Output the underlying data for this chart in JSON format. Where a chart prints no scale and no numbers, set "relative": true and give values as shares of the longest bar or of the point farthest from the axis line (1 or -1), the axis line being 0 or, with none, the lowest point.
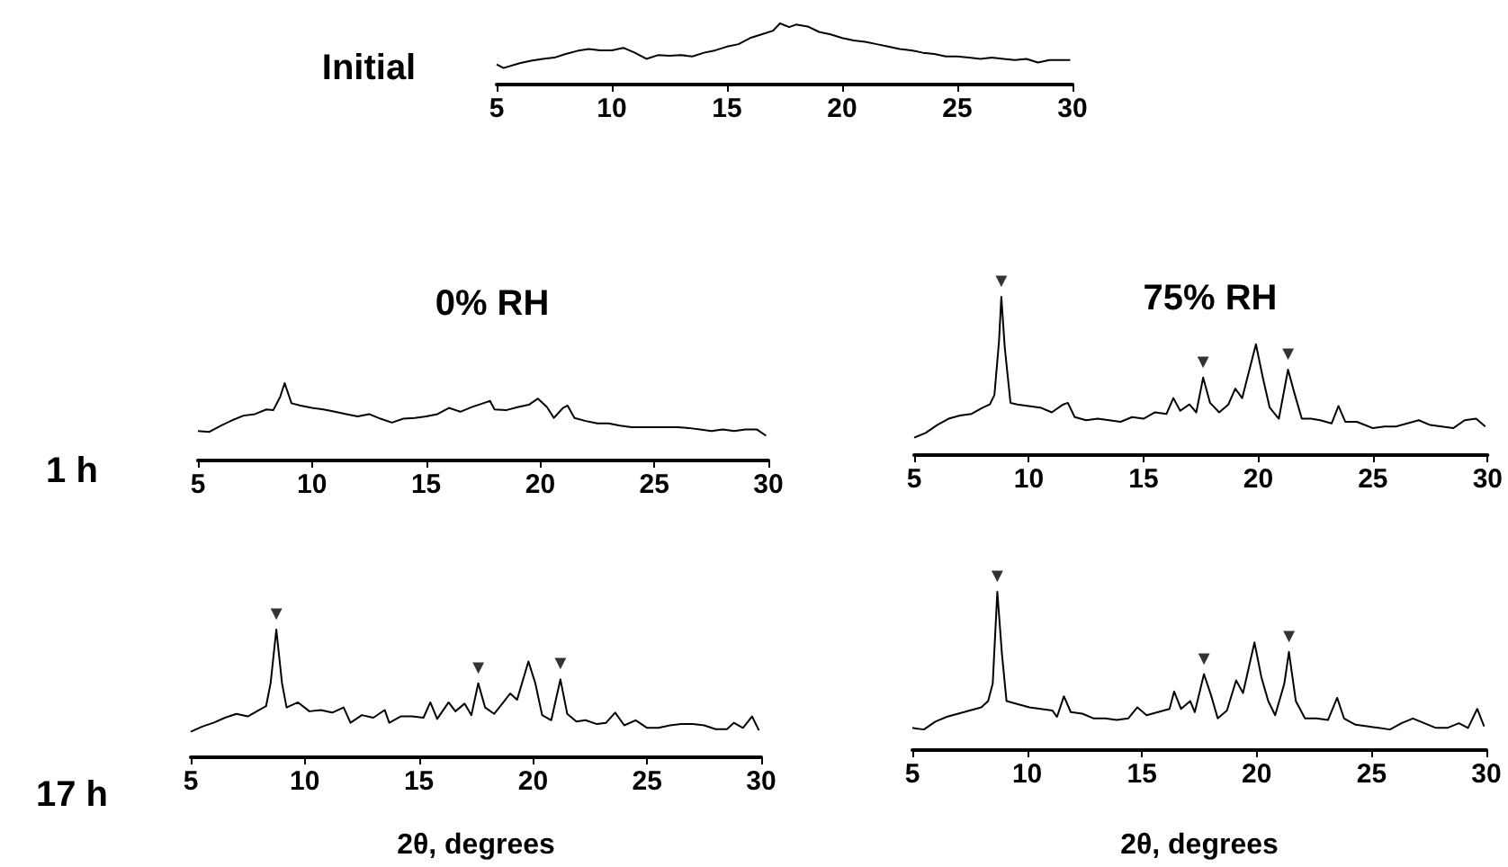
{
  "chart_data": [
    {
      "type": "line",
      "ylabel": "Initial",
      "relative": true,
      "xlim": [
        5,
        30
      ],
      "xticks": [
        5,
        10,
        15,
        20,
        25,
        30
      ],
      "x": [
        5,
        5.3,
        6,
        6.5,
        7,
        7.5,
        8,
        8.5,
        9,
        9.5,
        10,
        10.5,
        11,
        11.5,
        12,
        12.5,
        13,
        13.5,
        14,
        14.5,
        15,
        15.5,
        16,
        16.5,
        17,
        17.3,
        17.7,
        18,
        18.5,
        19,
        19.5,
        20,
        20.5,
        21,
        21.5,
        22,
        22.5,
        23,
        23.5,
        24,
        24.5,
        25,
        25.5,
        26,
        26.5,
        27,
        27.5,
        28,
        28.5,
        29,
        29.5,
        29.9
      ],
      "series": [
        {
          "color": "#000000",
          "values": [
            0.33,
            0.27,
            0.35,
            0.39,
            0.42,
            0.44,
            0.5,
            0.55,
            0.58,
            0.56,
            0.56,
            0.6,
            0.52,
            0.42,
            0.48,
            0.47,
            0.48,
            0.46,
            0.52,
            0.56,
            0.62,
            0.66,
            0.76,
            0.82,
            0.88,
            1.0,
            0.94,
            0.98,
            0.95,
            0.86,
            0.82,
            0.76,
            0.72,
            0.7,
            0.66,
            0.62,
            0.58,
            0.56,
            0.52,
            0.5,
            0.46,
            0.46,
            0.44,
            0.42,
            0.44,
            0.42,
            0.4,
            0.42,
            0.36,
            0.4,
            0.4,
            0.4
          ]
        }
      ]
    },
    {
      "type": "line",
      "title": "0% RH",
      "ylabel": "1 h",
      "relative": true,
      "xlim": [
        5,
        30
      ],
      "xticks": [
        5,
        10,
        15,
        20,
        25,
        30
      ],
      "x": [
        5,
        5.5,
        6,
        6.5,
        7,
        7.5,
        8,
        8.3,
        8.6,
        8.8,
        9.1,
        9.5,
        10,
        10.5,
        11,
        11.5,
        12,
        12.5,
        13,
        13.5,
        14,
        14.5,
        15,
        15.5,
        16,
        16.5,
        17,
        17.5,
        17.8,
        18,
        18.5,
        19,
        19.5,
        19.9,
        20.3,
        20.6,
        21,
        21.2,
        21.5,
        22,
        22.5,
        23,
        23.5,
        24,
        24.5,
        25,
        25.5,
        26,
        26.5,
        27,
        27.5,
        28,
        28.5,
        29,
        29.5,
        29.9
      ],
      "series": [
        {
          "color": "#000000",
          "values": [
            0.38,
            0.37,
            0.45,
            0.52,
            0.58,
            0.6,
            0.66,
            0.65,
            0.82,
            1.0,
            0.74,
            0.71,
            0.68,
            0.66,
            0.63,
            0.6,
            0.57,
            0.6,
            0.54,
            0.49,
            0.54,
            0.55,
            0.57,
            0.6,
            0.68,
            0.63,
            0.69,
            0.74,
            0.77,
            0.66,
            0.65,
            0.69,
            0.72,
            0.8,
            0.69,
            0.55,
            0.68,
            0.71,
            0.55,
            0.51,
            0.48,
            0.48,
            0.45,
            0.43,
            0.43,
            0.43,
            0.43,
            0.43,
            0.42,
            0.4,
            0.38,
            0.4,
            0.38,
            0.4,
            0.4,
            0.32
          ]
        }
      ]
    },
    {
      "type": "line",
      "title": "75% RH",
      "relative": true,
      "xlim": [
        5,
        30
      ],
      "xticks": [
        5,
        10,
        15,
        20,
        25,
        30
      ],
      "x": [
        5,
        5.5,
        6,
        6.5,
        7,
        7.5,
        8,
        8.3,
        8.5,
        8.7,
        8.8,
        8.95,
        9.2,
        9.5,
        10,
        10.5,
        11,
        11.5,
        11.7,
        12,
        12.5,
        13,
        13.5,
        14,
        14.5,
        15,
        15.5,
        16,
        16.3,
        16.6,
        17,
        17.3,
        17.6,
        17.9,
        18.3,
        18.7,
        19,
        19.3,
        19.6,
        19.9,
        20.2,
        20.5,
        20.9,
        21.3,
        21.6,
        21.9,
        22.3,
        22.7,
        23.2,
        23.5,
        23.8,
        24.3,
        25,
        25.5,
        26,
        26.5,
        27,
        27.5,
        28,
        28.5,
        29,
        29.5,
        29.9
      ],
      "series": [
        {
          "color": "#000000",
          "values": [
            0.11,
            0.14,
            0.19,
            0.23,
            0.25,
            0.26,
            0.3,
            0.32,
            0.38,
            0.72,
            1.0,
            0.68,
            0.33,
            0.32,
            0.31,
            0.3,
            0.27,
            0.32,
            0.33,
            0.24,
            0.22,
            0.23,
            0.22,
            0.21,
            0.24,
            0.23,
            0.27,
            0.26,
            0.36,
            0.28,
            0.32,
            0.27,
            0.49,
            0.33,
            0.27,
            0.32,
            0.42,
            0.36,
            0.53,
            0.7,
            0.49,
            0.3,
            0.23,
            0.54,
            0.38,
            0.23,
            0.23,
            0.22,
            0.2,
            0.31,
            0.21,
            0.21,
            0.17,
            0.18,
            0.18,
            0.2,
            0.22,
            0.19,
            0.18,
            0.17,
            0.22,
            0.23,
            0.18
          ]
        }
      ],
      "annotations": [
        {
          "text": "▼",
          "x": 8.8,
          "y": 1.0
        },
        {
          "text": "▼",
          "x": 17.6,
          "y": 0.49
        },
        {
          "text": "▼",
          "x": 21.3,
          "y": 0.54
        }
      ]
    },
    {
      "type": "line",
      "ylabel": "17 h",
      "xlabel": "2θ, degrees",
      "relative": true,
      "xlim": [
        5,
        30
      ],
      "xticks": [
        5,
        10,
        15,
        20,
        25,
        30
      ],
      "x": [
        5,
        5.5,
        6,
        6.5,
        7,
        7.5,
        8,
        8.3,
        8.5,
        8.75,
        9,
        9.2,
        9.7,
        10.2,
        10.7,
        11.2,
        11.7,
        12,
        12.5,
        13,
        13.5,
        13.7,
        14.2,
        14.7,
        15.2,
        15.5,
        15.8,
        16.3,
        16.6,
        17,
        17.3,
        17.6,
        17.9,
        18.3,
        18.7,
        19,
        19.3,
        19.8,
        20.1,
        20.4,
        20.8,
        21.2,
        21.5,
        21.9,
        22.3,
        22.8,
        23.2,
        23.6,
        24,
        24.5,
        25,
        25.5,
        26,
        26.5,
        27,
        27.5,
        28,
        28.5,
        28.8,
        29.2,
        29.6,
        29.9
      ],
      "series": [
        {
          "color": "#000000",
          "values": [
            0.2,
            0.24,
            0.27,
            0.31,
            0.34,
            0.32,
            0.37,
            0.4,
            0.58,
            1.0,
            0.58,
            0.39,
            0.43,
            0.36,
            0.37,
            0.35,
            0.39,
            0.27,
            0.33,
            0.31,
            0.37,
            0.27,
            0.32,
            0.32,
            0.31,
            0.43,
            0.3,
            0.43,
            0.36,
            0.42,
            0.33,
            0.58,
            0.39,
            0.34,
            0.43,
            0.5,
            0.45,
            0.75,
            0.58,
            0.33,
            0.29,
            0.61,
            0.34,
            0.28,
            0.29,
            0.26,
            0.27,
            0.35,
            0.25,
            0.29,
            0.23,
            0.23,
            0.25,
            0.26,
            0.26,
            0.25,
            0.22,
            0.22,
            0.27,
            0.23,
            0.32,
            0.21
          ]
        }
      ],
      "annotations": [
        {
          "text": "▼",
          "x": 8.75,
          "y": 1.0
        },
        {
          "text": "▼",
          "x": 17.6,
          "y": 0.58
        },
        {
          "text": "▼",
          "x": 21.2,
          "y": 0.61
        }
      ]
    },
    {
      "type": "line",
      "xlabel": "2θ, degrees",
      "relative": true,
      "xlim": [
        5,
        30
      ],
      "xticks": [
        5,
        10,
        15,
        20,
        25,
        30
      ],
      "x": [
        5,
        5.5,
        6,
        6.5,
        7,
        7.5,
        8,
        8.3,
        8.5,
        8.7,
        8.9,
        9.1,
        9.6,
        10.1,
        10.6,
        11.1,
        11.3,
        11.6,
        11.9,
        12.4,
        12.9,
        13.4,
        13.9,
        14.4,
        14.8,
        15.2,
        15.7,
        16.2,
        16.4,
        16.7,
        17.1,
        17.3,
        17.7,
        18,
        18.3,
        18.7,
        19.1,
        19.4,
        19.9,
        20.2,
        20.5,
        20.8,
        21.2,
        21.4,
        21.7,
        22.1,
        22.6,
        23.1,
        23.5,
        23.8,
        24.3,
        24.8,
        25.3,
        25.8,
        26.3,
        26.8,
        27.3,
        27.8,
        28.3,
        28.8,
        29.2,
        29.6,
        29.9
      ],
      "series": [
        {
          "color": "#000000",
          "values": [
            0.14,
            0.13,
            0.18,
            0.21,
            0.23,
            0.25,
            0.27,
            0.31,
            0.42,
            1.0,
            0.61,
            0.31,
            0.29,
            0.27,
            0.26,
            0.25,
            0.21,
            0.34,
            0.24,
            0.23,
            0.2,
            0.2,
            0.19,
            0.2,
            0.27,
            0.22,
            0.24,
            0.26,
            0.37,
            0.26,
            0.31,
            0.24,
            0.48,
            0.35,
            0.2,
            0.25,
            0.44,
            0.36,
            0.68,
            0.46,
            0.31,
            0.22,
            0.42,
            0.62,
            0.31,
            0.2,
            0.2,
            0.19,
            0.33,
            0.2,
            0.16,
            0.15,
            0.14,
            0.13,
            0.17,
            0.2,
            0.17,
            0.14,
            0.14,
            0.17,
            0.14,
            0.26,
            0.15
          ]
        }
      ],
      "annotations": [
        {
          "text": "▼",
          "x": 8.7,
          "y": 1.0
        },
        {
          "text": "▼",
          "x": 17.7,
          "y": 0.48
        },
        {
          "text": "▼",
          "x": 21.4,
          "y": 0.62
        }
      ]
    }
  ]
}
